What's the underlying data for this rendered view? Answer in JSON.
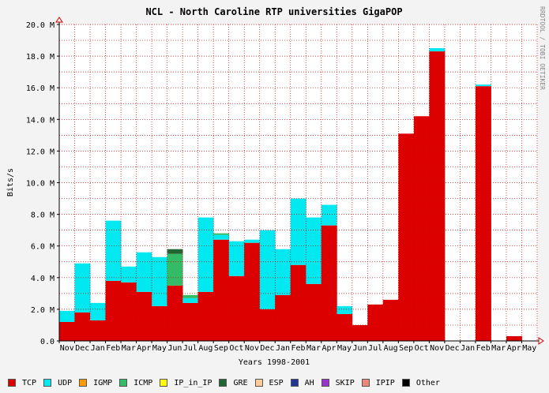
{
  "chart_data": {
    "type": "area",
    "title": "NCL - North Caroline RTP universities GigaPOP",
    "xlabel": "Years 1998-2001",
    "ylabel": "Bits/s",
    "watermark": "RRDTOOL / TOBI OETIKER",
    "ylim": [
      0,
      20000000
    ],
    "y_ticks": [
      "0.0",
      "2.0 M",
      "4.0 M",
      "6.0 M",
      "8.0 M",
      "10.0 M",
      "12.0 M",
      "14.0 M",
      "16.0 M",
      "18.0 M",
      "20.0 M"
    ],
    "categories": [
      "Nov",
      "Dec",
      "Jan",
      "Feb",
      "Mar",
      "Apr",
      "May",
      "Jun",
      "Jul",
      "Aug",
      "Sep",
      "Oct",
      "Nov",
      "Dec",
      "Jan",
      "Feb",
      "Mar",
      "Apr",
      "May",
      "Jun",
      "Jul",
      "Aug",
      "Sep",
      "Oct",
      "Nov",
      "Dec",
      "Jan",
      "Feb",
      "Mar",
      "Apr",
      "May"
    ],
    "grid": true,
    "series": [
      {
        "name": "TCP",
        "color": "#dd0000",
        "values": [
          1.2,
          1.8,
          1.3,
          3.8,
          3.7,
          3.1,
          2.2,
          3.5,
          2.4,
          3.1,
          6.4,
          4.1,
          6.2,
          2.0,
          2.9,
          4.8,
          3.6,
          7.3,
          1.7,
          1.0,
          2.3,
          2.6,
          13.1,
          14.2,
          18.3,
          0,
          0,
          16.1,
          0,
          0.3,
          0
        ]
      },
      {
        "name": "UDP",
        "color": "#00e8f0",
        "values": [
          0.7,
          3.1,
          1.1,
          3.8,
          1.0,
          2.5,
          3.1,
          0,
          0.3,
          4.7,
          0.3,
          2.2,
          0.2,
          5.0,
          2.9,
          4.2,
          4.2,
          1.3,
          0.5,
          0,
          0,
          0,
          0,
          0,
          0.2,
          0,
          0,
          0.1,
          0,
          0,
          0
        ]
      },
      {
        "name": "IGMP",
        "color": "#ff9900",
        "values": [
          0,
          0,
          0,
          0,
          0,
          0,
          0,
          0,
          0,
          0,
          0,
          0,
          0,
          0,
          0,
          0,
          0,
          0,
          0,
          0,
          0,
          0,
          0,
          0,
          0,
          0,
          0,
          0,
          0,
          0,
          0
        ]
      },
      {
        "name": "ICMP",
        "color": "#33bb66",
        "values": [
          0,
          0,
          0,
          0,
          0,
          0,
          0,
          2.0,
          0.2,
          0,
          0.1,
          0,
          0,
          0,
          0,
          0,
          0,
          0,
          0,
          0,
          0,
          0,
          0,
          0,
          0,
          0,
          0,
          0,
          0,
          0,
          0
        ]
      },
      {
        "name": "IP_in_IP",
        "color": "#ffff00",
        "values": [
          0,
          0,
          0,
          0,
          0,
          0,
          0,
          0,
          0,
          0,
          0,
          0,
          0,
          0,
          0,
          0,
          0,
          0,
          0,
          0,
          0,
          0,
          0,
          0,
          0,
          0,
          0,
          0,
          0,
          0,
          0
        ]
      },
      {
        "name": "GRE",
        "color": "#226633",
        "values": [
          0,
          0,
          0,
          0,
          0,
          0,
          0,
          0.3,
          0,
          0,
          0,
          0,
          0,
          0,
          0,
          0,
          0,
          0,
          0,
          0,
          0,
          0,
          0,
          0,
          0,
          0,
          0,
          0,
          0,
          0,
          0
        ]
      },
      {
        "name": "ESP",
        "color": "#ffcc99",
        "values": [
          0,
          0,
          0,
          0,
          0,
          0,
          0,
          0,
          0,
          0,
          0,
          0,
          0,
          0,
          0,
          0,
          0,
          0,
          0,
          0,
          0,
          0,
          0,
          0,
          0,
          0,
          0,
          0,
          0,
          0,
          0
        ]
      },
      {
        "name": "AH",
        "color": "#223399",
        "values": [
          0,
          0,
          0,
          0,
          0,
          0,
          0,
          0,
          0,
          0,
          0,
          0,
          0,
          0,
          0,
          0,
          0,
          0,
          0,
          0,
          0,
          0,
          0,
          0,
          0,
          0,
          0,
          0,
          0,
          0,
          0
        ]
      },
      {
        "name": "SKIP",
        "color": "#9933cc",
        "values": [
          0,
          0,
          0,
          0,
          0,
          0,
          0,
          0,
          0,
          0,
          0,
          0,
          0,
          0,
          0,
          0,
          0,
          0,
          0,
          0,
          0,
          0,
          0,
          0,
          0,
          0,
          0,
          0,
          0,
          0,
          0
        ]
      },
      {
        "name": "IPIP",
        "color": "#ee8877",
        "values": [
          0,
          0,
          0,
          0,
          0,
          0,
          0,
          0,
          0,
          0,
          0,
          0,
          0,
          0,
          0,
          0,
          0,
          0,
          0,
          0,
          0,
          0,
          0,
          0,
          0,
          0,
          0,
          0,
          0,
          0,
          0
        ]
      },
      {
        "name": "Other",
        "color": "#000000",
        "values": [
          0,
          0,
          0,
          0,
          0,
          0,
          0,
          0,
          0,
          0,
          0,
          0,
          0,
          0,
          0,
          0,
          0,
          0,
          0,
          0,
          0,
          0,
          0,
          0,
          0,
          0,
          0,
          0,
          0,
          0,
          0
        ]
      }
    ],
    "value_unit_multiplier": 1000000
  }
}
